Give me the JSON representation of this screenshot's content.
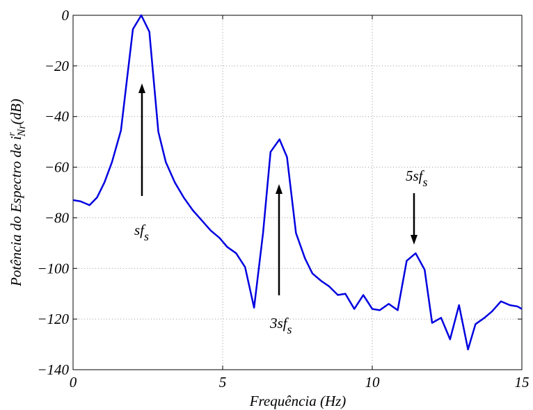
{
  "chart_data": {
    "type": "line",
    "xlabel": "Frequência (Hz)",
    "ylabel": {
      "text": "Potência do Espectro de ",
      "symbol": "i",
      "superscript": "r",
      "subscript": "Nr",
      "unit": "(dB)"
    },
    "x": [
      0,
      0.25,
      0.55,
      0.8,
      1.05,
      1.3,
      1.6,
      2.0,
      2.28,
      2.55,
      2.85,
      3.1,
      3.4,
      3.7,
      4.0,
      4.3,
      4.6,
      4.9,
      5.15,
      5.45,
      5.75,
      6.05,
      6.35,
      6.6,
      6.9,
      7.15,
      7.45,
      7.75,
      8.0,
      8.3,
      8.55,
      8.85,
      9.1,
      9.4,
      9.7,
      10.0,
      10.25,
      10.55,
      10.85,
      11.15,
      11.45,
      11.75,
      12.0,
      12.3,
      12.6,
      12.9,
      13.2,
      13.45,
      13.75,
      14.0,
      14.3,
      14.6,
      14.85,
      15
    ],
    "series": [
      {
        "color": "#0000e0",
        "values": [
          -73,
          -73.5,
          -75,
          -72,
          -66,
          -58,
          -45.5,
          -5.5,
          0,
          -6.5,
          -46,
          -58,
          -66,
          -72,
          -77,
          -81,
          -85,
          -88,
          -91.5,
          -94,
          -99.5,
          -115.5,
          -86,
          -54,
          -49,
          -56,
          -86,
          -96,
          -102,
          -105,
          -107,
          -110.5,
          -110,
          -116,
          -110.5,
          -116,
          -116.5,
          -114,
          -116.5,
          -97,
          -94,
          -100.5,
          -121.5,
          -119.5,
          -128,
          -114.5,
          -132,
          -122,
          -119.5,
          -117,
          -113,
          -114.5,
          -115,
          -116
        ]
      }
    ],
    "xlim": [
      0,
      15
    ],
    "xticks": [
      0,
      5,
      10,
      15
    ],
    "ylim": [
      -140,
      0
    ],
    "yticks": [
      -140,
      -120,
      -100,
      -80,
      -60,
      -40,
      -20,
      0
    ],
    "grid": true,
    "annotations": [
      {
        "text": "sf",
        "subscript": "s"
      },
      {
        "text": "3sf",
        "subscript": "s"
      },
      {
        "text": "5sf",
        "subscript": "s"
      }
    ]
  }
}
